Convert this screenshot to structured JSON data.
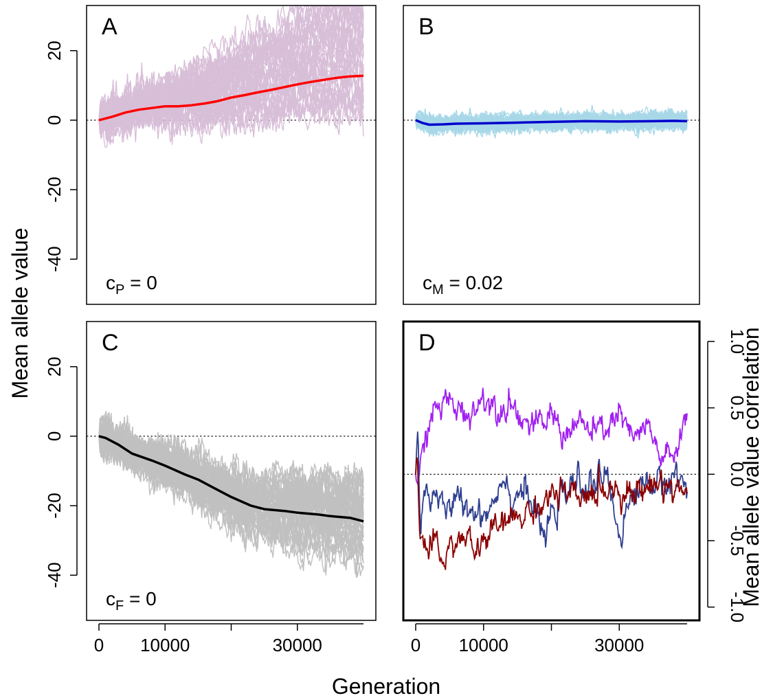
{
  "figure": {
    "xlabel": "Generation",
    "ylabel_left": "Mean allele value",
    "ylabel_right": "Mean allele value correlation"
  },
  "chart_data": [
    {
      "id": "A",
      "type": "line",
      "panel_label": "A",
      "annotation": {
        "base": "c",
        "sub": "P",
        "rest": " = 0"
      },
      "xlim": [
        0,
        40000
      ],
      "ylim": [
        -53,
        33
      ],
      "yticks": [
        -40,
        -20,
        0,
        20
      ],
      "ytick_labels": [
        "-40",
        "-20",
        "0",
        "20"
      ],
      "reference_line_y": 0,
      "replicate_color": "#d8bfd8",
      "mean_color": "#ff0000",
      "replicate_count": 40,
      "mean_series": {
        "x": [
          0,
          2000,
          4000,
          6000,
          8000,
          10000,
          12000,
          14000,
          16000,
          18000,
          20000,
          22000,
          24000,
          26000,
          28000,
          30000,
          32000,
          34000,
          36000,
          38000,
          40000
        ],
        "y": [
          0,
          1,
          2.2,
          3,
          3.5,
          4,
          4,
          4.3,
          4.8,
          5.5,
          6.5,
          7.2,
          8,
          8.7,
          9.5,
          10.3,
          11,
          11.6,
          12.2,
          12.6,
          12.8
        ]
      }
    },
    {
      "id": "B",
      "type": "line",
      "panel_label": "B",
      "annotation": {
        "base": "c",
        "sub": "M",
        "rest": " = 0.02"
      },
      "xlim": [
        0,
        40000
      ],
      "ylim": [
        -53,
        33
      ],
      "reference_line_y": 0,
      "replicate_color": "#a8d8e8",
      "mean_color": "#0000cd",
      "replicate_count": 40,
      "mean_series": {
        "x": [
          0,
          1000,
          2000,
          4000,
          6000,
          10000,
          15000,
          20000,
          25000,
          30000,
          35000,
          38000,
          40000
        ],
        "y": [
          0,
          -0.8,
          -1.3,
          -1.2,
          -1,
          -0.9,
          -0.7,
          -0.5,
          -0.3,
          -0.4,
          -0.3,
          -0.2,
          -0.3
        ]
      }
    },
    {
      "id": "C",
      "type": "line",
      "panel_label": "C",
      "annotation": {
        "base": "c",
        "sub": "F",
        "rest": " = 0"
      },
      "xlim": [
        0,
        40000
      ],
      "ylim": [
        -53,
        33
      ],
      "yticks": [
        -40,
        -20,
        0,
        20
      ],
      "ytick_labels": [
        "-40",
        "-20",
        "0",
        "20"
      ],
      "xticks": [
        0,
        10000,
        20000,
        30000
      ],
      "xtick_labels": [
        "0",
        "10000",
        "",
        "30000"
      ],
      "reference_line_y": 0,
      "replicate_color": "#c0c0c0",
      "mean_color": "#000000",
      "replicate_count": 40,
      "mean_series": {
        "x": [
          0,
          1000,
          3000,
          5000,
          8000,
          10000,
          13000,
          15000,
          17000,
          20000,
          23000,
          25000,
          28000,
          30000,
          33000,
          35000,
          38000,
          40000
        ],
        "y": [
          0,
          -0.5,
          -2.5,
          -5,
          -7,
          -8.5,
          -11,
          -12.5,
          -14.5,
          -17.5,
          -20,
          -21,
          -21.5,
          -22,
          -22.5,
          -23,
          -23.5,
          -24.5
        ]
      }
    },
    {
      "id": "D",
      "type": "line",
      "panel_label": "D",
      "xlim": [
        0,
        40000
      ],
      "ylim": [
        -1.1,
        1.15
      ],
      "yticks": [
        -1.0,
        -0.5,
        0.0,
        0.5,
        1.0
      ],
      "ytick_labels": [
        "-1.0",
        "-0.5",
        "0.0",
        "0.5",
        "1.0"
      ],
      "xticks": [
        0,
        10000,
        20000,
        30000
      ],
      "xtick_labels": [
        "0",
        "10000",
        "",
        "30000"
      ],
      "reference_line_y": 0,
      "series": [
        {
          "color": "#a020f0",
          "x": [
            0,
            500,
            1000,
            2000,
            3000,
            5000,
            7000,
            9000,
            10000,
            12000,
            14000,
            16000,
            18000,
            20000,
            22000,
            24000,
            26000,
            28000,
            30000,
            32000,
            34000,
            36000,
            38000,
            39500,
            40000
          ],
          "y": [
            0,
            -0.1,
            0.15,
            0.4,
            0.5,
            0.55,
            0.45,
            0.5,
            0.6,
            0.5,
            0.55,
            0.4,
            0.35,
            0.45,
            0.3,
            0.4,
            0.3,
            0.35,
            0.45,
            0.25,
            0.35,
            0.15,
            0.1,
            0.4,
            0.45
          ]
        },
        {
          "color": "#2f3f8f",
          "x": [
            0,
            300,
            700,
            1200,
            2000,
            3000,
            4000,
            6000,
            8000,
            10000,
            12000,
            13000,
            14000,
            16000,
            18000,
            19000,
            20000,
            22000,
            24000,
            26000,
            28000,
            29000,
            30000,
            31000,
            32000,
            34000,
            36000,
            38000,
            40000
          ],
          "y": [
            0,
            0.3,
            -0.35,
            -0.1,
            -0.2,
            -0.1,
            -0.3,
            -0.2,
            -0.25,
            -0.3,
            -0.15,
            0.05,
            -0.2,
            -0.1,
            -0.35,
            -0.5,
            -0.3,
            -0.15,
            -0.05,
            -0.1,
            0.0,
            -0.2,
            -0.45,
            -0.3,
            -0.15,
            -0.05,
            -0.1,
            0.0,
            -0.1
          ]
        },
        {
          "color": "#8b0000",
          "x": [
            0,
            300,
            600,
            1000,
            2000,
            3000,
            4000,
            5000,
            6000,
            8000,
            9000,
            10000,
            12000,
            14000,
            16000,
            18000,
            20000,
            22000,
            24000,
            26000,
            28000,
            30000,
            32000,
            34000,
            36000,
            38000,
            40000
          ],
          "y": [
            0,
            0.2,
            -0.45,
            -0.5,
            -0.6,
            -0.55,
            -0.65,
            -0.55,
            -0.5,
            -0.5,
            -0.6,
            -0.5,
            -0.4,
            -0.35,
            -0.3,
            -0.25,
            -0.15,
            -0.15,
            -0.2,
            -0.15,
            -0.1,
            -0.1,
            -0.15,
            -0.1,
            -0.05,
            -0.1,
            -0.15
          ]
        }
      ]
    }
  ]
}
